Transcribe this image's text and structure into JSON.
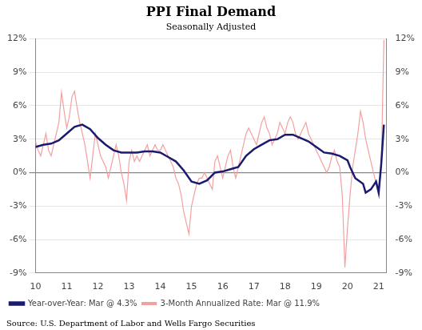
{
  "chart_data": {
    "type": "line",
    "title": "PPI Final Demand",
    "subtitle": "Seasonally Adjusted",
    "source": "Source: U.S. Department of Labor and Wells Fargo Securities",
    "xlim": [
      10,
      21.25
    ],
    "xticks": [
      10,
      11,
      12,
      13,
      14,
      15,
      16,
      17,
      18,
      19,
      20,
      21
    ],
    "ylim": [
      -9,
      12
    ],
    "yticks": [
      {
        "value": -9,
        "label": "-9%"
      },
      {
        "value": -6,
        "label": "-6%"
      },
      {
        "value": -3,
        "label": "-3%"
      },
      {
        "value": 0,
        "label": "0%"
      },
      {
        "value": 3,
        "label": "3%"
      },
      {
        "value": 6,
        "label": "6%"
      },
      {
        "value": 9,
        "label": "9%"
      },
      {
        "value": 12,
        "label": "12%"
      }
    ],
    "y2lim": [
      -9,
      12
    ],
    "y2ticks": [
      {
        "value": -9,
        "label": "-9%"
      },
      {
        "value": -6,
        "label": "-6%"
      },
      {
        "value": -3,
        "label": "-3%"
      },
      {
        "value": 0,
        "label": "0%"
      },
      {
        "value": 3,
        "label": "3%"
      },
      {
        "value": 6,
        "label": "6%"
      },
      {
        "value": 9,
        "label": "9%"
      },
      {
        "value": 12,
        "label": "12%"
      }
    ],
    "grid": true,
    "legend": "lower left",
    "series": [
      {
        "name": "Year-over-Year: Mar @ 4.3%",
        "color": "#1a1a6e",
        "x": [
          10.0,
          10.25,
          10.5,
          10.75,
          11.0,
          11.25,
          11.5,
          11.75,
          12.0,
          12.25,
          12.5,
          12.75,
          13.0,
          13.25,
          13.5,
          13.75,
          14.0,
          14.25,
          14.5,
          14.75,
          15.0,
          15.25,
          15.5,
          15.75,
          16.0,
          16.25,
          16.5,
          16.75,
          17.0,
          17.25,
          17.5,
          17.75,
          18.0,
          18.25,
          18.5,
          18.75,
          19.0,
          19.25,
          19.5,
          19.75,
          20.0,
          20.083,
          20.25,
          20.5,
          20.583,
          20.75,
          20.917,
          21.0,
          21.083,
          21.167
        ],
        "values": [
          2.3,
          2.5,
          2.6,
          2.9,
          3.5,
          4.1,
          4.3,
          3.9,
          3.1,
          2.5,
          2.0,
          1.8,
          1.8,
          1.8,
          1.9,
          1.9,
          1.8,
          1.4,
          1.0,
          0.2,
          -0.8,
          -1.0,
          -0.7,
          0.0,
          0.1,
          0.3,
          0.5,
          1.5,
          2.1,
          2.5,
          2.9,
          3.0,
          3.4,
          3.4,
          3.1,
          2.8,
          2.3,
          1.8,
          1.7,
          1.5,
          1.1,
          0.5,
          -0.5,
          -1.0,
          -1.8,
          -1.5,
          -0.8,
          -1.8,
          0.8,
          4.3
        ]
      },
      {
        "name": "3-Month Annualized Rate: Mar @ 11.9%",
        "color": "#f4a0a0",
        "x": [
          10.0,
          10.083,
          10.167,
          10.25,
          10.333,
          10.417,
          10.5,
          10.583,
          10.667,
          10.75,
          10.833,
          10.917,
          11.0,
          11.083,
          11.167,
          11.25,
          11.333,
          11.417,
          11.5,
          11.583,
          11.667,
          11.75,
          11.833,
          11.917,
          12.0,
          12.083,
          12.167,
          12.25,
          12.333,
          12.417,
          12.5,
          12.583,
          12.667,
          12.75,
          12.833,
          12.917,
          13.0,
          13.083,
          13.167,
          13.25,
          13.333,
          13.417,
          13.5,
          13.583,
          13.667,
          13.75,
          13.833,
          13.917,
          14.0,
          14.083,
          14.167,
          14.25,
          14.333,
          14.417,
          14.5,
          14.583,
          14.667,
          14.75,
          14.833,
          14.917,
          15.0,
          15.083,
          15.167,
          15.25,
          15.333,
          15.417,
          15.5,
          15.583,
          15.667,
          15.75,
          15.833,
          15.917,
          16.0,
          16.083,
          16.167,
          16.25,
          16.333,
          16.417,
          16.5,
          16.583,
          16.667,
          16.75,
          16.833,
          16.917,
          17.0,
          17.083,
          17.167,
          17.25,
          17.333,
          17.417,
          17.5,
          17.583,
          17.667,
          17.75,
          17.833,
          17.917,
          18.0,
          18.083,
          18.167,
          18.25,
          18.333,
          18.417,
          18.5,
          18.583,
          18.667,
          18.75,
          18.833,
          18.917,
          19.0,
          19.083,
          19.167,
          19.25,
          19.333,
          19.417,
          19.5,
          19.583,
          19.667,
          19.75,
          19.833,
          19.917,
          20.0,
          20.083,
          20.167,
          20.25,
          20.333,
          20.417,
          20.5,
          20.583,
          20.667,
          20.75,
          20.833,
          20.917,
          21.0,
          21.083,
          21.167
        ],
        "values": [
          2.8,
          2.0,
          1.5,
          2.5,
          3.5,
          2.0,
          1.5,
          2.5,
          3.5,
          4.5,
          7.2,
          5.5,
          4.0,
          5.0,
          6.8,
          7.3,
          5.8,
          4.5,
          3.5,
          2.5,
          1.0,
          -0.5,
          1.5,
          3.5,
          2.5,
          1.5,
          1.0,
          0.5,
          -0.5,
          0.5,
          1.5,
          2.5,
          1.5,
          0.0,
          -1.0,
          -2.5,
          1.0,
          2.0,
          1.0,
          1.5,
          1.0,
          1.5,
          2.0,
          2.5,
          1.5,
          2.0,
          2.5,
          2.0,
          2.0,
          2.5,
          2.0,
          1.5,
          1.0,
          0.5,
          -0.5,
          -1.0,
          -2.0,
          -3.5,
          -4.5,
          -5.5,
          -3.0,
          -2.0,
          -1.0,
          -0.5,
          -0.5,
          0.0,
          -0.5,
          -1.0,
          -1.5,
          1.0,
          1.5,
          0.5,
          -0.5,
          0.5,
          1.5,
          2.0,
          0.5,
          -0.5,
          0.5,
          1.5,
          2.5,
          3.5,
          4.0,
          3.5,
          3.0,
          2.5,
          3.5,
          4.5,
          5.0,
          4.0,
          3.5,
          2.5,
          3.0,
          3.5,
          4.5,
          4.0,
          3.5,
          4.5,
          5.0,
          4.5,
          3.5,
          3.0,
          3.5,
          4.0,
          4.5,
          3.5,
          3.0,
          2.5,
          2.0,
          1.5,
          1.0,
          0.5,
          0.0,
          0.5,
          1.5,
          2.0,
          1.0,
          0.5,
          -2.0,
          -8.5,
          -5.0,
          -2.0,
          0.5,
          2.0,
          3.5,
          5.5,
          4.5,
          3.0,
          2.0,
          1.0,
          0.0,
          -1.0,
          -1.8,
          0.5,
          11.9
        ]
      }
    ]
  }
}
